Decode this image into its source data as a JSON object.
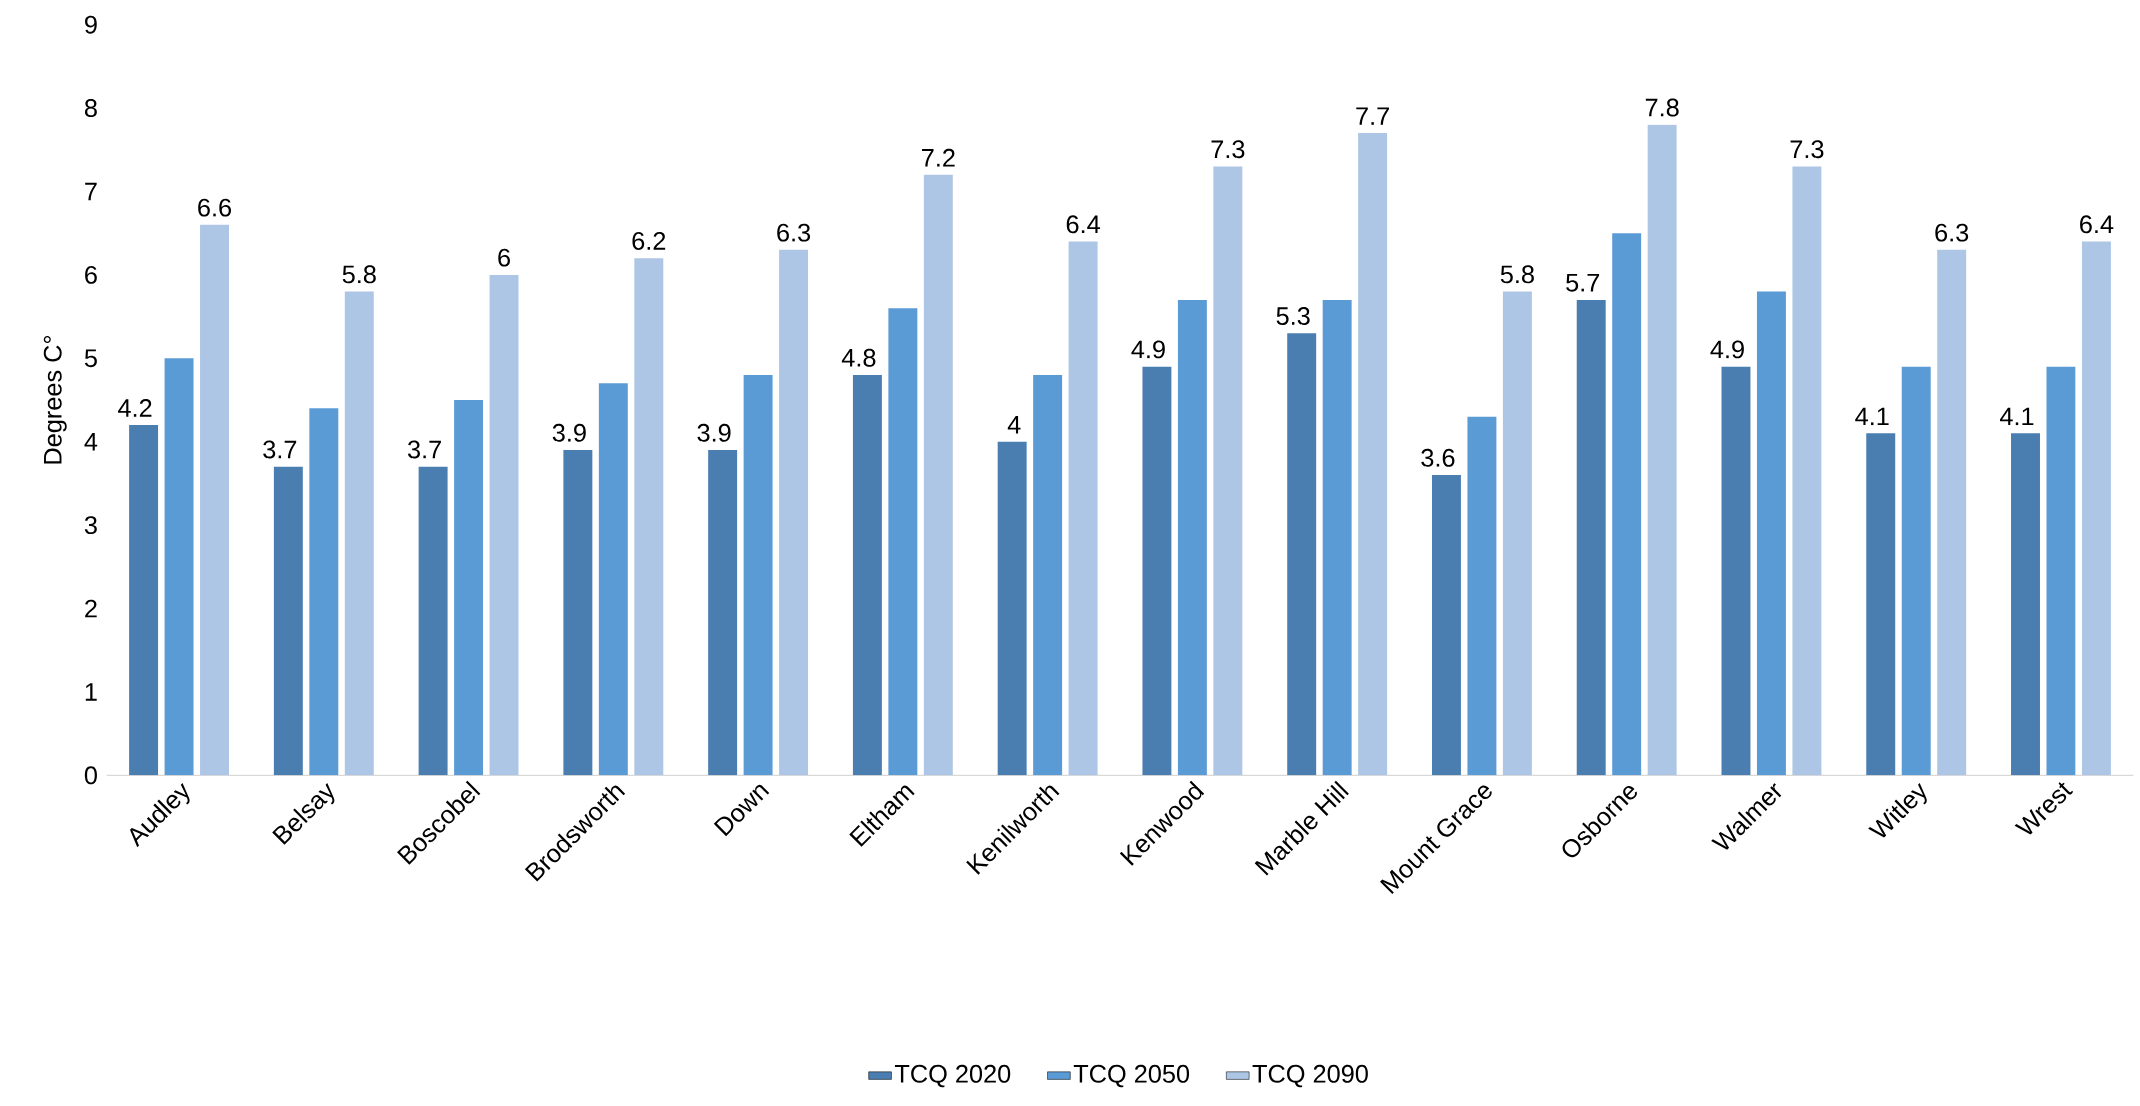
{
  "chart_data": {
    "type": "bar",
    "ylabel": "Degrees C°",
    "categories": [
      "Audley",
      "Belsay",
      "Boscobel",
      "Brodsworth",
      "Down",
      "Eltham",
      "Kenilworth",
      "Kenwood",
      "Marble Hill",
      "Mount Grace",
      "Osborne",
      "Walmer",
      "Witley",
      "Wrest"
    ],
    "series": [
      {
        "name": "TCQ 2020",
        "color": "#4a7eb0",
        "values": [
          4.2,
          3.7,
          3.7,
          3.9,
          3.9,
          4.8,
          4,
          4.9,
          5.3,
          3.6,
          5.7,
          4.9,
          4.1,
          4.1
        ],
        "value_labels": [
          "4.2",
          "3.7",
          "3.7",
          "3.9",
          "3.9",
          "4.8",
          "4",
          "4.9",
          "5.3",
          "3.6",
          "5.7",
          "4.9",
          "4.1",
          "4.1"
        ]
      },
      {
        "name": "TCQ 2050",
        "color": "#5b9bd5",
        "values": [
          5.0,
          4.4,
          4.5,
          4.7,
          4.8,
          5.6,
          4.8,
          5.7,
          5.7,
          4.3,
          6.5,
          5.8,
          4.9,
          4.9
        ]
      },
      {
        "name": "TCQ 2090",
        "color": "#adc6e5",
        "values": [
          6.6,
          5.8,
          6,
          6.2,
          6.3,
          7.2,
          6.4,
          7.3,
          7.7,
          5.8,
          7.8,
          7.3,
          6.3,
          6.4
        ],
        "value_labels": [
          "6.6",
          "5.8",
          "6",
          "6.2",
          "6.3",
          "7.2",
          "6.4",
          "7.3",
          "7.7",
          "5.8",
          "7.8",
          "7.3",
          "6.3",
          "6.4"
        ]
      }
    ],
    "ylim": [
      0,
      9
    ],
    "yticks": [
      0,
      1,
      2,
      3,
      4,
      5,
      6,
      7,
      8,
      9
    ],
    "grid": false,
    "legend": "bottom"
  }
}
